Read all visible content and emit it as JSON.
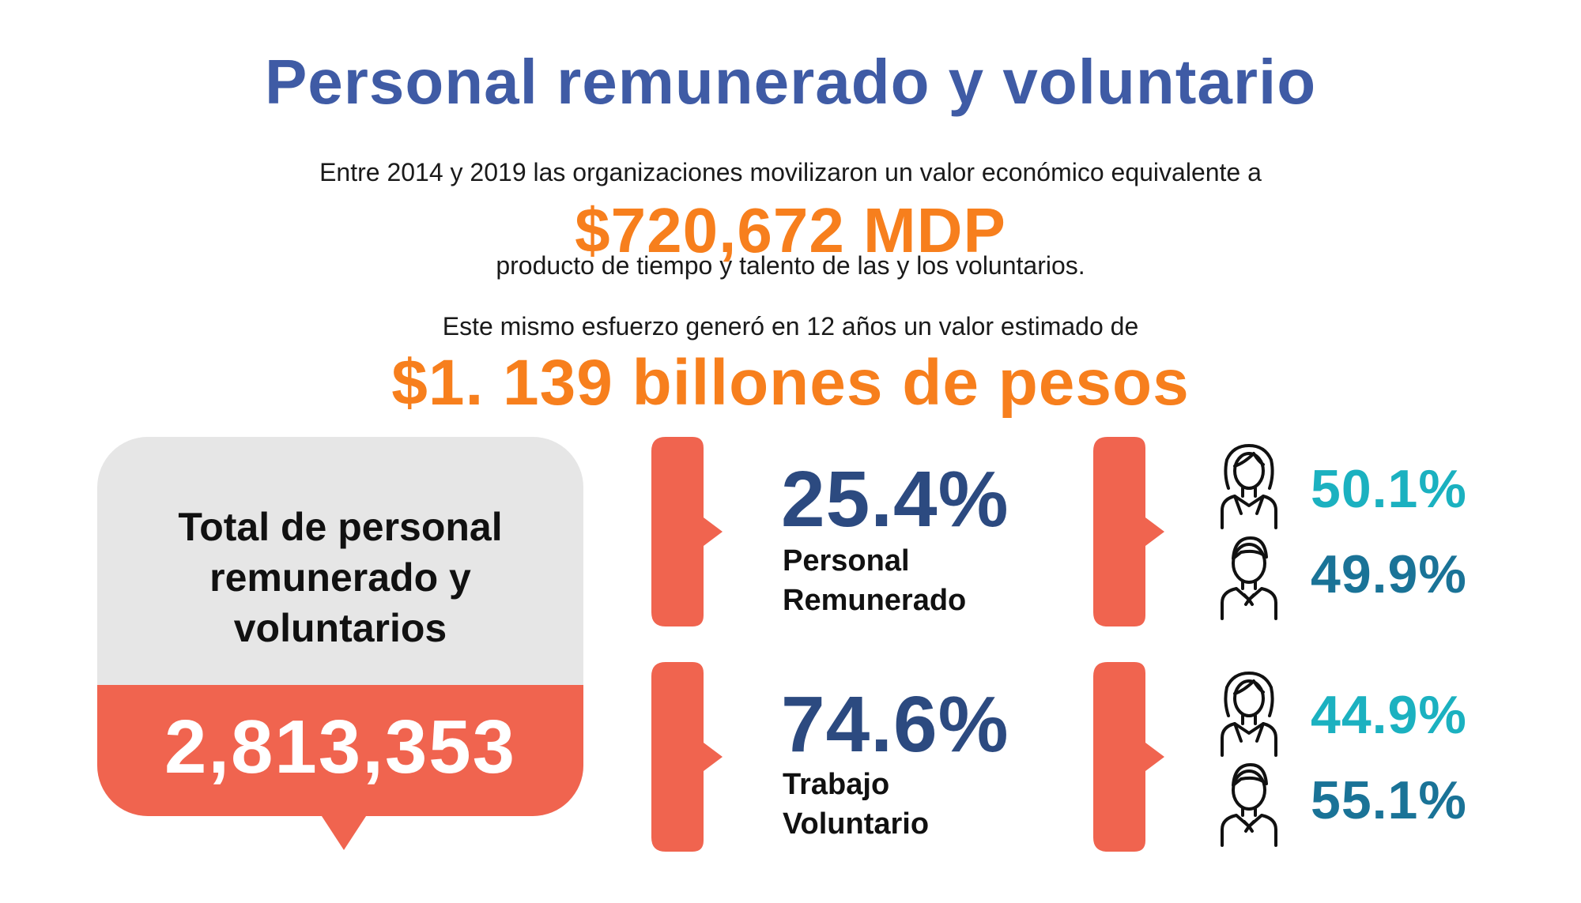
{
  "title": "Personal remunerado y voluntario",
  "intro": {
    "line1": "Entre 2014 y 2019  las organizaciones movilizaron un valor económico equivalente a",
    "big1": "$720,672 MDP",
    "line2": "producto de tiempo y talento de las y los voluntarios.",
    "line3": "Este mismo esfuerzo generó en 12 años un valor estimado de",
    "big2": "$1. 139 billones de pesos"
  },
  "total": {
    "label_lines": [
      "Total de personal",
      "remunerado y",
      "voluntarios"
    ],
    "value": "2,813,353"
  },
  "groups": [
    {
      "pct": "25.4%",
      "label_lines": [
        "Personal",
        "Remunerado"
      ],
      "women": "50.1%",
      "men": "49.9%"
    },
    {
      "pct": "74.6%",
      "label_lines": [
        "Trabajo",
        "Voluntario"
      ],
      "women": "44.9%",
      "men": "55.1%"
    }
  ],
  "icons": {
    "women": "woman-icon",
    "men": "man-icon"
  },
  "colors": {
    "title": "#3f5ba5",
    "highlight_orange": "#f77f1d",
    "coral": "#f0644f",
    "dark_blue": "#2c4a80",
    "teal": "#1bb1c0",
    "dark_teal": "#1a7397",
    "card_gray": "#e6e6e6"
  }
}
